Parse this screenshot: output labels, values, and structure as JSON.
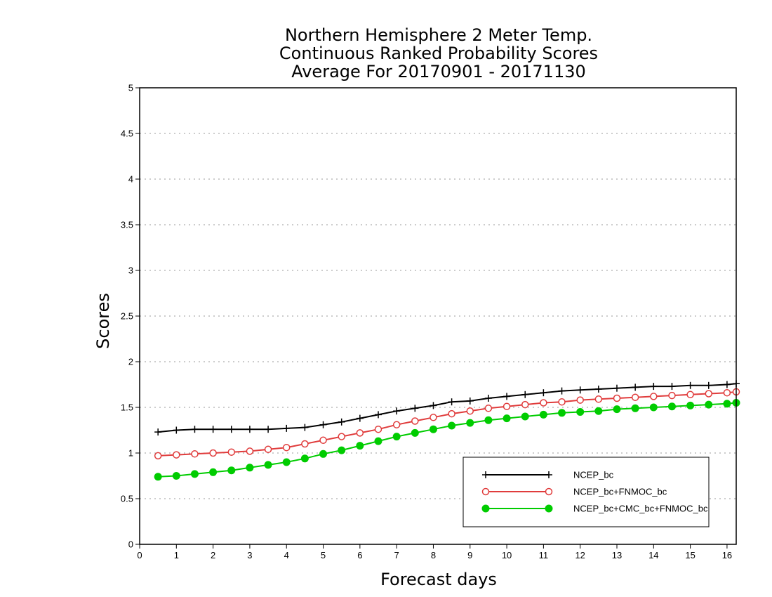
{
  "chart_data": {
    "type": "line",
    "title_lines": [
      "Northern Hemisphere 2 Meter Temp.",
      "Continuous Ranked Probability Scores",
      "Average For 20170901 - 20171130"
    ],
    "xlabel": "Forecast days",
    "ylabel": "Scores",
    "xlim": [
      0,
      16.25
    ],
    "ylim": [
      0,
      5
    ],
    "x_ticks": [
      0,
      1,
      2,
      3,
      4,
      5,
      6,
      7,
      8,
      9,
      10,
      11,
      12,
      13,
      14,
      15,
      16
    ],
    "y_ticks": [
      0,
      0.5,
      1,
      1.5,
      2,
      2.5,
      3,
      3.5,
      4,
      4.5,
      5
    ],
    "y_tick_labels": [
      "0",
      "0.5",
      "1",
      "1.5",
      "2",
      "2.5",
      "3",
      "3.5",
      "4",
      "4.5",
      "5"
    ],
    "grid": "horizontal dotted",
    "legend_position": "bottom-right",
    "x": [
      0.5,
      1,
      1.5,
      2,
      2.5,
      3,
      3.5,
      4,
      4.5,
      5,
      5.5,
      6,
      6.5,
      7,
      7.5,
      8,
      8.5,
      9,
      9.5,
      10,
      10.5,
      11,
      11.5,
      12,
      12.5,
      13,
      13.5,
      14,
      14.5,
      15,
      15.5,
      16,
      16.25
    ],
    "series": [
      {
        "name": "NCEP_bc",
        "color": "#000000",
        "marker": "plus",
        "values": [
          1.23,
          1.25,
          1.26,
          1.26,
          1.26,
          1.26,
          1.26,
          1.27,
          1.28,
          1.31,
          1.34,
          1.38,
          1.42,
          1.46,
          1.49,
          1.52,
          1.56,
          1.57,
          1.6,
          1.62,
          1.64,
          1.66,
          1.68,
          1.69,
          1.7,
          1.71,
          1.72,
          1.73,
          1.73,
          1.74,
          1.74,
          1.75,
          1.76
        ]
      },
      {
        "name": "NCEP_bc+FNMOC_bc",
        "color": "#e03c3c",
        "marker": "open-circle",
        "values": [
          0.97,
          0.98,
          0.99,
          1.0,
          1.01,
          1.02,
          1.04,
          1.06,
          1.1,
          1.14,
          1.18,
          1.22,
          1.26,
          1.31,
          1.35,
          1.39,
          1.43,
          1.46,
          1.49,
          1.51,
          1.53,
          1.55,
          1.56,
          1.58,
          1.59,
          1.6,
          1.61,
          1.62,
          1.63,
          1.64,
          1.65,
          1.66,
          1.67
        ]
      },
      {
        "name": "NCEP_bc+CMC_bc+FNMOC_bc",
        "color": "#00cc00",
        "marker": "filled-circle",
        "values": [
          0.74,
          0.75,
          0.77,
          0.79,
          0.81,
          0.84,
          0.87,
          0.9,
          0.94,
          0.99,
          1.03,
          1.08,
          1.13,
          1.18,
          1.22,
          1.26,
          1.3,
          1.33,
          1.36,
          1.38,
          1.4,
          1.42,
          1.44,
          1.45,
          1.46,
          1.48,
          1.49,
          1.5,
          1.51,
          1.52,
          1.53,
          1.54,
          1.55
        ]
      }
    ]
  }
}
